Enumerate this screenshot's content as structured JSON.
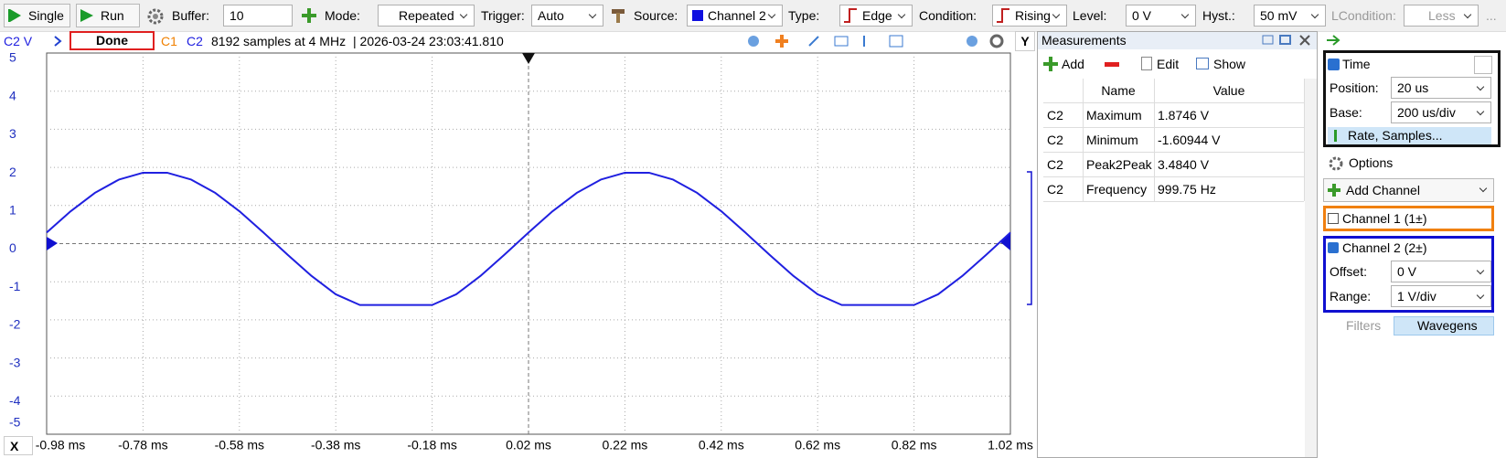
{
  "toolbar": {
    "single": "Single",
    "run": "Run",
    "buffer_label": "Buffer:",
    "buffer": "10",
    "mode_label": "Mode:",
    "mode": "Repeated",
    "trigger_label": "Trigger:",
    "trigger": "Auto",
    "source_label": "Source:",
    "source": "Channel 2",
    "type_label": "Type:",
    "type": "Edge",
    "condition_label": "Condition:",
    "condition": "Rising",
    "level_label": "Level:",
    "level": "0 V",
    "hyst_label": "Hyst.:",
    "hyst": "50 mV",
    "lcondition_label": "LCondition:",
    "lcondition": "Less",
    "more": "..."
  },
  "status": {
    "state": "Done",
    "c1": "C1",
    "info": "8192 samples at 4 MHz",
    "timestamp": "| 2026-03-24 23:03:41.810",
    "y_button": "Y",
    "x_button": "X"
  },
  "chart_data": {
    "type": "line",
    "y_label": "C2 V",
    "x": [
      -0.98,
      -0.93,
      -0.88,
      -0.83,
      -0.78,
      -0.73,
      -0.68,
      -0.63,
      -0.58,
      -0.53,
      -0.48,
      -0.43,
      -0.38,
      -0.33,
      -0.28,
      -0.23,
      -0.18,
      -0.13,
      -0.08,
      -0.03,
      0.02,
      0.07,
      0.12,
      0.17,
      0.22,
      0.27,
      0.32,
      0.37,
      0.42,
      0.47,
      0.52,
      0.57,
      0.62,
      0.67,
      0.72,
      0.77,
      0.82,
      0.87,
      0.92,
      0.97,
      1.02
    ],
    "series": [
      {
        "name": "C2",
        "color": "#2020e0",
        "values": [
          0.29,
          0.85,
          1.33,
          1.68,
          1.86,
          1.86,
          1.68,
          1.33,
          0.85,
          0.29,
          -0.29,
          -0.85,
          -1.33,
          -1.61,
          -1.61,
          -1.61,
          -1.61,
          -1.33,
          -0.85,
          -0.29,
          0.29,
          0.85,
          1.33,
          1.68,
          1.86,
          1.86,
          1.68,
          1.33,
          0.85,
          0.29,
          -0.29,
          -0.85,
          -1.33,
          -1.61,
          -1.61,
          -1.61,
          -1.61,
          -1.33,
          -0.85,
          -0.29,
          0.29
        ]
      }
    ],
    "xlim": [
      -0.98,
      1.02
    ],
    "xticks": [
      {
        "value": -0.98,
        "label": "-0.98 ms"
      },
      {
        "value": -0.78,
        "label": "-0.78 ms"
      },
      {
        "value": -0.58,
        "label": "-0.58 ms"
      },
      {
        "value": -0.38,
        "label": "-0.38 ms"
      },
      {
        "value": -0.18,
        "label": "-0.18 ms"
      },
      {
        "value": 0.02,
        "label": "0.02 ms"
      },
      {
        "value": 0.22,
        "label": "0.22 ms"
      },
      {
        "value": 0.42,
        "label": "0.42 ms"
      },
      {
        "value": 0.62,
        "label": "0.62 ms"
      },
      {
        "value": 0.82,
        "label": "0.82 ms"
      },
      {
        "value": 1.02,
        "label": "1.02 ms"
      }
    ],
    "ylim": [
      -5,
      5
    ],
    "yticks": [
      -5,
      -4,
      -3,
      -2,
      -1,
      0,
      1,
      2,
      3,
      4,
      5
    ],
    "grid": true
  },
  "measurements": {
    "title": "Measurements",
    "add": "Add",
    "edit": "Edit",
    "show": "Show",
    "columns": [
      "Name",
      "Value"
    ],
    "rows": [
      [
        "C2",
        "Maximum",
        "1.8746 V"
      ],
      [
        "C2",
        "Minimum",
        "-1.60944 V"
      ],
      [
        "C2",
        "Peak2Peak",
        "3.4840 V"
      ],
      [
        "C2",
        "Frequency",
        "999.75 Hz"
      ]
    ]
  },
  "time_panel": {
    "title": "Time",
    "position_label": "Position:",
    "position": "20 us",
    "base_label": "Base:",
    "base": "200 us/div",
    "rate": "Rate, Samples..."
  },
  "options": "Options",
  "add_channel": "Add Channel",
  "channel1": {
    "title": "Channel 1 (1±)"
  },
  "channel2": {
    "title": "Channel 2 (2±)",
    "offset_label": "Offset:",
    "offset": "0 V",
    "range_label": "Range:",
    "range": "1 V/div"
  },
  "filters": "Filters",
  "wavegens": "Wavegens"
}
